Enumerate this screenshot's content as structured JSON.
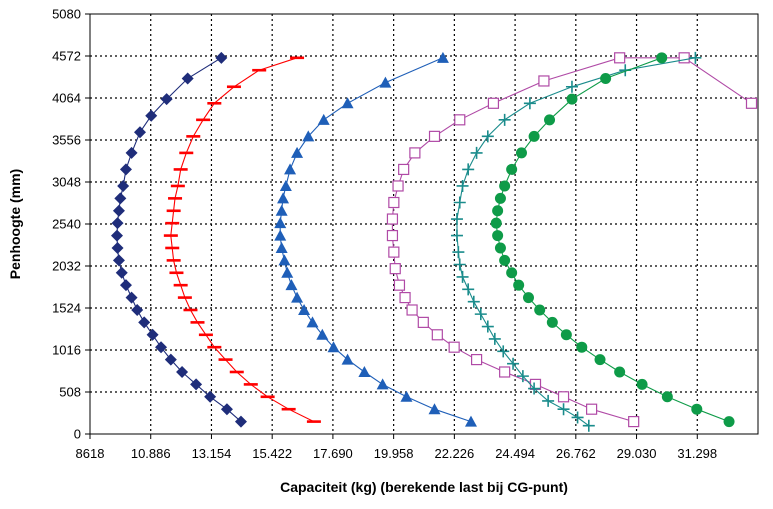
{
  "chart_data": {
    "type": "scatter",
    "title": "",
    "xlabel": "Capaciteit (kg) (berekende last bij CG-punt)",
    "ylabel": "Penhoogte (mm)",
    "xlim": [
      8618,
      32432
    ],
    "ylim": [
      0,
      5080
    ],
    "x_ticks": [
      "8618",
      "10.886",
      "13.154",
      "15.422",
      "17.690",
      "19.958",
      "22.226",
      "24.494",
      "26.762",
      "29.030",
      "31.298"
    ],
    "y_ticks": [
      "0",
      "508",
      "1016",
      "1524",
      "2032",
      "2540",
      "3048",
      "3556",
      "4064",
      "4572",
      "5080"
    ],
    "grid": "dotted",
    "legend": "none",
    "series": [
      {
        "color": "#1f2d7a",
        "marker": "diamond",
        "points": [
          [
            14000,
            150
          ],
          [
            13500,
            300
          ],
          [
            12900,
            450
          ],
          [
            12400,
            600
          ],
          [
            11900,
            750
          ],
          [
            11500,
            900
          ],
          [
            11150,
            1050
          ],
          [
            10850,
            1200
          ],
          [
            10550,
            1350
          ],
          [
            10300,
            1500
          ],
          [
            10100,
            1650
          ],
          [
            9900,
            1800
          ],
          [
            9750,
            1950
          ],
          [
            9650,
            2100
          ],
          [
            9600,
            2250
          ],
          [
            9580,
            2400
          ],
          [
            9600,
            2550
          ],
          [
            9650,
            2700
          ],
          [
            9700,
            2850
          ],
          [
            9800,
            3000
          ],
          [
            9900,
            3200
          ],
          [
            10100,
            3400
          ],
          [
            10400,
            3650
          ],
          [
            10800,
            3850
          ],
          [
            11350,
            4050
          ],
          [
            12100,
            4300
          ],
          [
            13300,
            4550
          ]
        ]
      },
      {
        "color": "#ff0000",
        "marker": "dash",
        "points": [
          [
            16600,
            150
          ],
          [
            15700,
            300
          ],
          [
            14950,
            450
          ],
          [
            14350,
            600
          ],
          [
            13850,
            750
          ],
          [
            13450,
            900
          ],
          [
            13050,
            1050
          ],
          [
            12750,
            1200
          ],
          [
            12450,
            1350
          ],
          [
            12200,
            1500
          ],
          [
            12000,
            1650
          ],
          [
            11850,
            1800
          ],
          [
            11700,
            1950
          ],
          [
            11600,
            2100
          ],
          [
            11550,
            2250
          ],
          [
            11500,
            2400
          ],
          [
            11550,
            2550
          ],
          [
            11600,
            2700
          ],
          [
            11650,
            2850
          ],
          [
            11750,
            3000
          ],
          [
            11850,
            3200
          ],
          [
            12050,
            3400
          ],
          [
            12300,
            3600
          ],
          [
            12650,
            3800
          ],
          [
            13050,
            4000
          ],
          [
            13750,
            4200
          ],
          [
            14650,
            4400
          ],
          [
            16000,
            4550
          ]
        ]
      },
      {
        "color": "#1f5fb8",
        "marker": "triangle",
        "points": [
          [
            22200,
            150
          ],
          [
            20900,
            300
          ],
          [
            19900,
            450
          ],
          [
            19050,
            600
          ],
          [
            18400,
            750
          ],
          [
            17800,
            900
          ],
          [
            17300,
            1050
          ],
          [
            16900,
            1200
          ],
          [
            16550,
            1350
          ],
          [
            16250,
            1500
          ],
          [
            16000,
            1650
          ],
          [
            15800,
            1800
          ],
          [
            15650,
            1950
          ],
          [
            15550,
            2100
          ],
          [
            15450,
            2250
          ],
          [
            15400,
            2400
          ],
          [
            15400,
            2550
          ],
          [
            15450,
            2700
          ],
          [
            15500,
            2850
          ],
          [
            15600,
            3000
          ],
          [
            15750,
            3200
          ],
          [
            16000,
            3400
          ],
          [
            16400,
            3600
          ],
          [
            16950,
            3800
          ],
          [
            17800,
            4000
          ],
          [
            19150,
            4250
          ],
          [
            21200,
            4550
          ]
        ]
      },
      {
        "color": "#b04aa6",
        "marker": "square",
        "points": [
          [
            32200,
            4000
          ],
          [
            29800,
            4550
          ],
          [
            27500,
            4550
          ],
          [
            24800,
            4270
          ],
          [
            23000,
            4000
          ],
          [
            21800,
            3800
          ],
          [
            20900,
            3600
          ],
          [
            20200,
            3400
          ],
          [
            19800,
            3200
          ],
          [
            19600,
            3000
          ],
          [
            19450,
            2800
          ],
          [
            19400,
            2600
          ],
          [
            19400,
            2400
          ],
          [
            19450,
            2200
          ],
          [
            19500,
            2000
          ],
          [
            19650,
            1800
          ],
          [
            19850,
            1650
          ],
          [
            20100,
            1500
          ],
          [
            20500,
            1350
          ],
          [
            21000,
            1200
          ],
          [
            21600,
            1050
          ],
          [
            22400,
            900
          ],
          [
            23400,
            750
          ],
          [
            24500,
            600
          ],
          [
            25500,
            450
          ],
          [
            26500,
            300
          ],
          [
            28000,
            150
          ]
        ]
      },
      {
        "color": "#1a8c8c",
        "marker": "plus",
        "points": [
          [
            30200,
            4550
          ],
          [
            27700,
            4400
          ],
          [
            25800,
            4200
          ],
          [
            24300,
            4000
          ],
          [
            23400,
            3800
          ],
          [
            22800,
            3600
          ],
          [
            22400,
            3400
          ],
          [
            22100,
            3200
          ],
          [
            21900,
            3000
          ],
          [
            21800,
            2800
          ],
          [
            21700,
            2600
          ],
          [
            21700,
            2400
          ],
          [
            21750,
            2200
          ],
          [
            21800,
            2050
          ],
          [
            21900,
            1900
          ],
          [
            22100,
            1750
          ],
          [
            22300,
            1600
          ],
          [
            22550,
            1450
          ],
          [
            22800,
            1300
          ],
          [
            23050,
            1150
          ],
          [
            23350,
            1000
          ],
          [
            23700,
            850
          ],
          [
            24050,
            700
          ],
          [
            24450,
            550
          ],
          [
            24950,
            400
          ],
          [
            25500,
            300
          ],
          [
            26000,
            200
          ],
          [
            26400,
            100
          ]
        ]
      },
      {
        "color": "#0e9b48",
        "marker": "circle",
        "points": [
          [
            31400,
            150
          ],
          [
            30250,
            300
          ],
          [
            29200,
            450
          ],
          [
            28300,
            600
          ],
          [
            27500,
            750
          ],
          [
            26800,
            900
          ],
          [
            26150,
            1050
          ],
          [
            25600,
            1200
          ],
          [
            25100,
            1350
          ],
          [
            24650,
            1500
          ],
          [
            24250,
            1650
          ],
          [
            23900,
            1800
          ],
          [
            23650,
            1950
          ],
          [
            23400,
            2100
          ],
          [
            23250,
            2250
          ],
          [
            23150,
            2400
          ],
          [
            23100,
            2550
          ],
          [
            23150,
            2700
          ],
          [
            23250,
            2850
          ],
          [
            23400,
            3000
          ],
          [
            23650,
            3200
          ],
          [
            24000,
            3400
          ],
          [
            24450,
            3600
          ],
          [
            25000,
            3800
          ],
          [
            25800,
            4050
          ],
          [
            27000,
            4300
          ],
          [
            29000,
            4550
          ]
        ]
      }
    ]
  }
}
